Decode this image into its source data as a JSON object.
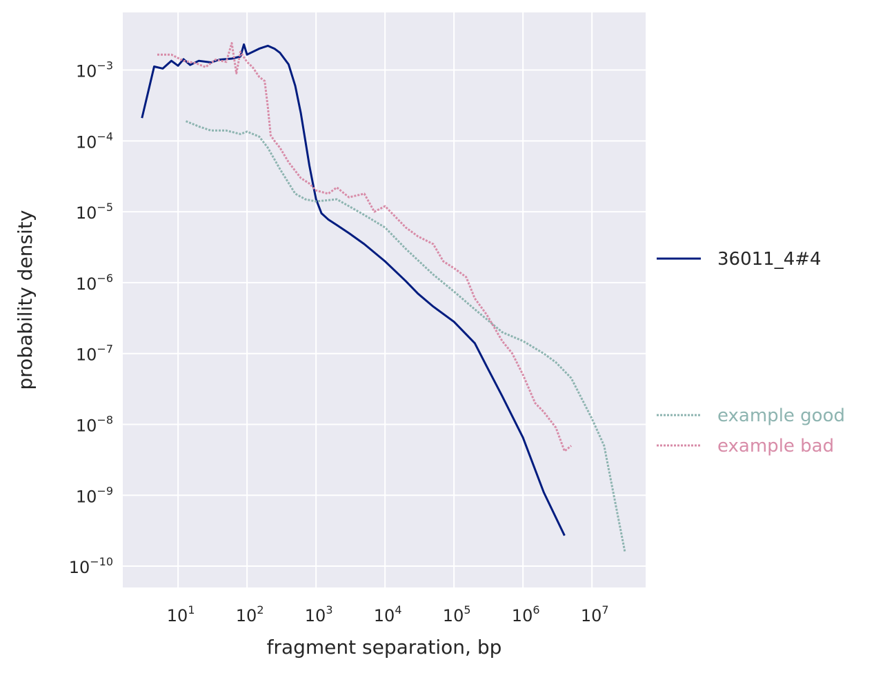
{
  "chart_data": {
    "type": "line",
    "title": "",
    "xlabel": "fragment separation, bp",
    "ylabel": "probability density",
    "xscale": "log",
    "yscale": "log",
    "xlim": [
      1.58,
      60000000
    ],
    "ylim": [
      5e-11,
      0.0065
    ],
    "grid": true,
    "background": "#EAEAF2",
    "x_ticks": [
      {
        "base": "10",
        "exp": "1",
        "value": 10
      },
      {
        "base": "10",
        "exp": "2",
        "value": 100
      },
      {
        "base": "10",
        "exp": "3",
        "value": 1000
      },
      {
        "base": "10",
        "exp": "4",
        "value": 10000
      },
      {
        "base": "10",
        "exp": "5",
        "value": 100000
      },
      {
        "base": "10",
        "exp": "6",
        "value": 1000000
      },
      {
        "base": "10",
        "exp": "7",
        "value": 10000000
      }
    ],
    "y_ticks": [
      {
        "base": "10",
        "exp": "−3",
        "value": 0.001
      },
      {
        "base": "10",
        "exp": "−4",
        "value": 0.0001
      },
      {
        "base": "10",
        "exp": "−5",
        "value": 1e-05
      },
      {
        "base": "10",
        "exp": "−6",
        "value": 1e-06
      },
      {
        "base": "10",
        "exp": "−7",
        "value": 1e-07
      },
      {
        "base": "10",
        "exp": "−8",
        "value": 1e-08
      },
      {
        "base": "10",
        "exp": "−9",
        "value": 1e-09
      },
      {
        "base": "10",
        "exp": "−10",
        "value": 1e-10
      }
    ],
    "legend": {
      "placement": "right"
    },
    "series": [
      {
        "name": "36011_4#4",
        "color": "#001C7F",
        "style": "solid",
        "x": [
          3,
          4.5,
          6,
          8,
          10,
          12,
          15,
          20,
          30,
          40,
          60,
          80,
          90,
          100,
          150,
          200,
          250,
          300,
          400,
          500,
          600,
          700,
          800,
          900,
          1000,
          1200,
          1500,
          2000,
          3000,
          5000,
          10000,
          20000,
          30000,
          50000,
          100000,
          200000,
          300000,
          500000,
          1000000,
          2000000,
          4000000
        ],
        "y": [
          0.00021,
          0.00112,
          0.00105,
          0.00135,
          0.00115,
          0.00142,
          0.00118,
          0.00135,
          0.00128,
          0.0014,
          0.00145,
          0.00155,
          0.0023,
          0.00165,
          0.002,
          0.0022,
          0.002,
          0.00175,
          0.0012,
          0.0006,
          0.00025,
          0.0001,
          4.5e-05,
          2.5e-05,
          1.5e-05,
          9.5e-06,
          7.8e-06,
          6.5e-06,
          5e-06,
          3.5e-06,
          2e-06,
          1.05e-06,
          7e-07,
          4.6e-07,
          2.8e-07,
          1.4e-07,
          6.5e-08,
          2.5e-08,
          6.5e-09,
          1.1e-09,
          2.7e-10
        ]
      },
      {
        "name": "example good",
        "color": "#8DB4B0",
        "style": "dotted",
        "x": [
          13,
          20,
          30,
          50,
          80,
          100,
          150,
          200,
          300,
          500,
          700,
          1000,
          2000,
          3000,
          5000,
          10000,
          20000,
          50000,
          100000,
          200000,
          500000,
          1000000,
          2000000,
          3000000,
          5000000,
          10000000,
          15000000,
          30000000
        ],
        "y": [
          0.00019,
          0.00016,
          0.00014,
          0.00014,
          0.000125,
          0.000135,
          0.000115,
          8e-05,
          4e-05,
          1.8e-05,
          1.5e-05,
          1.4e-05,
          1.5e-05,
          1.2e-05,
          9e-06,
          6e-06,
          3e-06,
          1.3e-06,
          7.5e-07,
          4.2e-07,
          2e-07,
          1.5e-07,
          1e-07,
          7.5e-08,
          4.5e-08,
          1.2e-08,
          5e-09,
          1.6e-10
        ]
      },
      {
        "name": "example bad",
        "color": "#D88CA8",
        "style": "dotted",
        "x": [
          5,
          8,
          12,
          18,
          25,
          35,
          50,
          60,
          70,
          80,
          100,
          120,
          150,
          180,
          200,
          220,
          250,
          300,
          400,
          600,
          800,
          1000,
          1500,
          2000,
          3000,
          5000,
          7000,
          10000,
          15000,
          20000,
          30000,
          50000,
          70000,
          100000,
          150000,
          200000,
          300000,
          500000,
          700000,
          1000000,
          1500000,
          2000000,
          3000000,
          4000000,
          5000000
        ],
        "y": [
          0.00165,
          0.00165,
          0.00135,
          0.00125,
          0.0011,
          0.0014,
          0.0013,
          0.0024,
          0.0009,
          0.0018,
          0.0013,
          0.0011,
          0.0008,
          0.0007,
          0.0003,
          0.00012,
          0.0001,
          8e-05,
          5e-05,
          3e-05,
          2.5e-05,
          2e-05,
          1.8e-05,
          2.2e-05,
          1.6e-05,
          1.8e-05,
          1e-05,
          1.2e-05,
          8e-06,
          6e-06,
          4.5e-06,
          3.5e-06,
          2e-06,
          1.6e-06,
          1.2e-06,
          6e-07,
          3.5e-07,
          1.5e-07,
          1e-07,
          5e-08,
          2e-08,
          1.5e-08,
          9e-09,
          4.2e-09,
          5e-09
        ]
      }
    ]
  }
}
